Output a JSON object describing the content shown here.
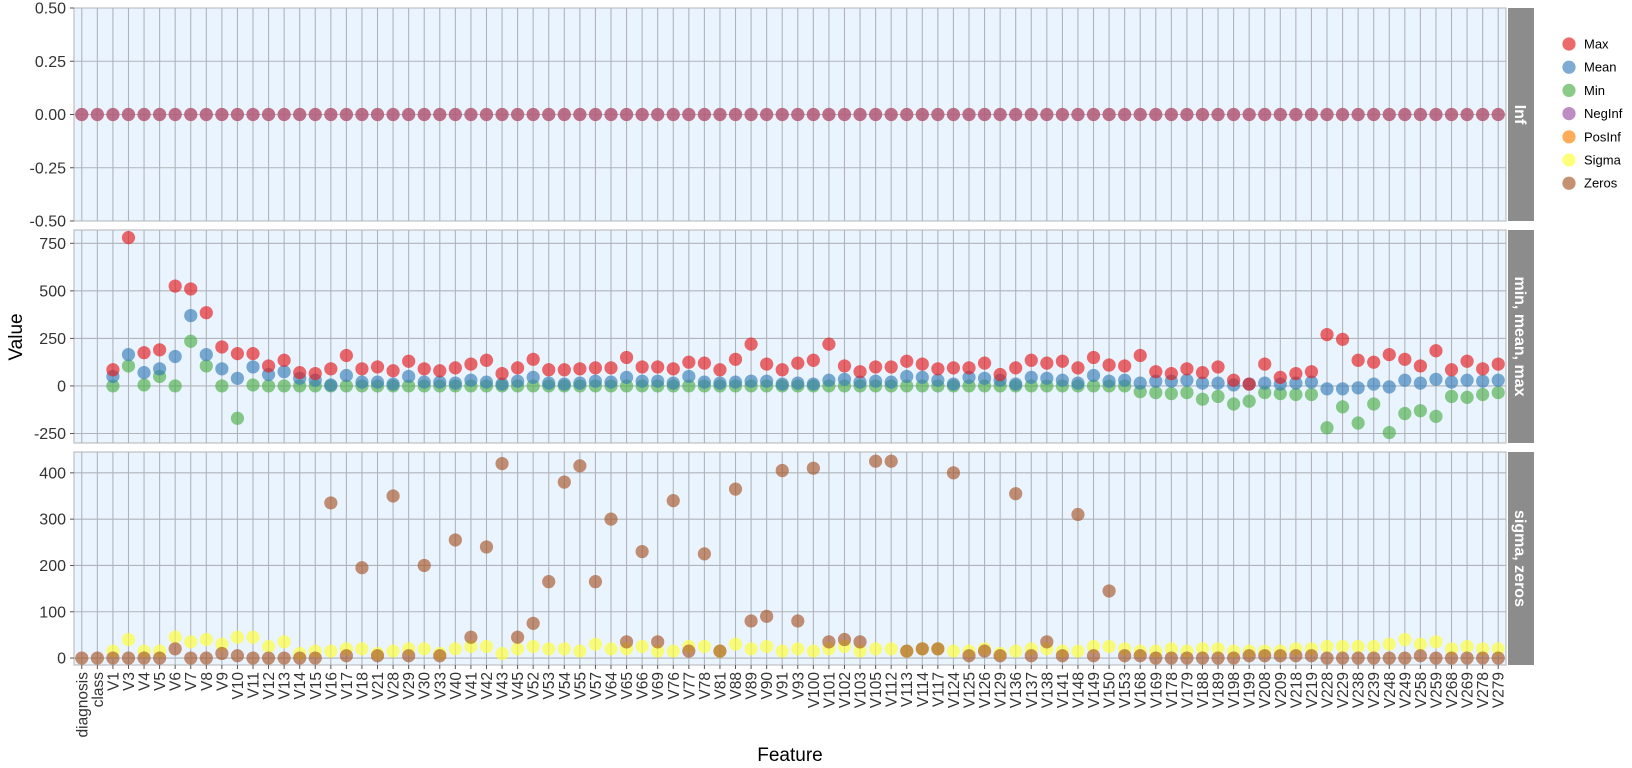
{
  "chart_data": {
    "type": "scatter",
    "xlabel": "Feature",
    "ylabel": "Value",
    "features": [
      "diagnosis",
      "class",
      "V1",
      "V3",
      "V4",
      "V5",
      "V6",
      "V7",
      "V8",
      "V9",
      "V10",
      "V11",
      "V12",
      "V13",
      "V14",
      "V15",
      "V16",
      "V17",
      "V18",
      "V21",
      "V28",
      "V29",
      "V30",
      "V33",
      "V40",
      "V41",
      "V42",
      "V43",
      "V45",
      "V52",
      "V53",
      "V54",
      "V55",
      "V57",
      "V64",
      "V65",
      "V66",
      "V69",
      "V76",
      "V77",
      "V78",
      "V81",
      "V88",
      "V89",
      "V90",
      "V91",
      "V93",
      "V100",
      "V101",
      "V102",
      "V103",
      "V105",
      "V112",
      "V113",
      "V114",
      "V117",
      "V124",
      "V125",
      "V126",
      "V129",
      "V136",
      "V137",
      "V138",
      "V141",
      "V148",
      "V149",
      "V150",
      "V153",
      "V168",
      "V169",
      "V178",
      "V179",
      "V188",
      "V189",
      "V198",
      "V199",
      "V208",
      "V209",
      "V218",
      "V219",
      "V228",
      "V229",
      "V238",
      "V239",
      "V248",
      "V249",
      "V258",
      "V259",
      "V268",
      "V269",
      "V278",
      "V279"
    ],
    "legend": {
      "position": "right",
      "entries": [
        {
          "name": "Max",
          "color": "#e41a1c"
        },
        {
          "name": "Mean",
          "color": "#377eb8"
        },
        {
          "name": "Min",
          "color": "#4daf4a"
        },
        {
          "name": "NegInf",
          "color": "#984ea3"
        },
        {
          "name": "PosInf",
          "color": "#ff7f00"
        },
        {
          "name": "Sigma",
          "color": "#ffff33"
        },
        {
          "name": "Zeros",
          "color": "#a65628"
        }
      ]
    },
    "panels": [
      {
        "strip": "Inf",
        "ylim": [
          -0.5,
          0.5
        ],
        "yticks": [
          0.5,
          0.25,
          0.0,
          -0.25,
          -0.5
        ],
        "ytick_labels": [
          "0.50",
          "0.25",
          "0.00",
          "-0.25",
          "-0.50"
        ],
        "series": [
          {
            "name": "PosInf",
            "values": [
              0,
              0,
              0,
              0,
              0,
              0,
              0,
              0,
              0,
              0,
              0,
              0,
              0,
              0,
              0,
              0,
              0,
              0,
              0,
              0,
              0,
              0,
              0,
              0,
              0,
              0,
              0,
              0,
              0,
              0,
              0,
              0,
              0,
              0,
              0,
              0,
              0,
              0,
              0,
              0,
              0,
              0,
              0,
              0,
              0,
              0,
              0,
              0,
              0,
              0,
              0,
              0,
              0,
              0,
              0,
              0,
              0,
              0,
              0,
              0,
              0,
              0,
              0,
              0,
              0,
              0,
              0,
              0,
              0,
              0,
              0,
              0,
              0,
              0,
              0,
              0,
              0,
              0,
              0,
              0,
              0,
              0,
              0,
              0,
              0,
              0,
              0,
              0,
              0,
              0,
              0,
              0
            ]
          },
          {
            "name": "NegInf",
            "values": [
              0,
              0,
              0,
              0,
              0,
              0,
              0,
              0,
              0,
              0,
              0,
              0,
              0,
              0,
              0,
              0,
              0,
              0,
              0,
              0,
              0,
              0,
              0,
              0,
              0,
              0,
              0,
              0,
              0,
              0,
              0,
              0,
              0,
              0,
              0,
              0,
              0,
              0,
              0,
              0,
              0,
              0,
              0,
              0,
              0,
              0,
              0,
              0,
              0,
              0,
              0,
              0,
              0,
              0,
              0,
              0,
              0,
              0,
              0,
              0,
              0,
              0,
              0,
              0,
              0,
              0,
              0,
              0,
              0,
              0,
              0,
              0,
              0,
              0,
              0,
              0,
              0,
              0,
              0,
              0,
              0,
              0,
              0,
              0,
              0,
              0,
              0,
              0,
              0,
              0,
              0,
              0
            ]
          }
        ]
      },
      {
        "strip": "min, mean, max",
        "ylim": [
          -300,
          820
        ],
        "yticks": [
          750,
          500,
          250,
          0,
          -250
        ],
        "ytick_labels": [
          "750",
          "500",
          "250",
          "0",
          "-250"
        ],
        "series": [
          {
            "name": "Min",
            "values": [
              null,
              null,
              0,
              105,
              5,
              50,
              0,
              235,
              105,
              0,
              -170,
              5,
              0,
              0,
              0,
              0,
              0,
              0,
              0,
              0,
              0,
              0,
              0,
              0,
              0,
              0,
              0,
              0,
              0,
              0,
              0,
              0,
              0,
              0,
              0,
              0,
              0,
              0,
              0,
              0,
              0,
              0,
              0,
              0,
              0,
              0,
              0,
              0,
              0,
              0,
              0,
              0,
              0,
              0,
              0,
              0,
              0,
              0,
              0,
              0,
              0,
              0,
              0,
              0,
              0,
              0,
              0,
              0,
              -30,
              -35,
              -40,
              -35,
              -70,
              -55,
              -95,
              -80,
              -35,
              -40,
              -45,
              -45,
              -220,
              -110,
              -195,
              -95,
              -245,
              -145,
              -130,
              -160,
              -55,
              -60,
              -45,
              -35
            ]
          },
          {
            "name": "Mean",
            "values": [
              null,
              null,
              50,
              165,
              70,
              90,
              155,
              370,
              165,
              90,
              40,
              100,
              60,
              75,
              40,
              30,
              5,
              55,
              20,
              20,
              10,
              50,
              20,
              20,
              15,
              30,
              20,
              10,
              25,
              45,
              15,
              10,
              15,
              25,
              20,
              45,
              25,
              25,
              15,
              50,
              20,
              15,
              20,
              25,
              25,
              10,
              15,
              10,
              30,
              35,
              20,
              25,
              20,
              50,
              45,
              30,
              10,
              45,
              40,
              30,
              10,
              45,
              40,
              30,
              15,
              55,
              25,
              30,
              15,
              25,
              25,
              30,
              15,
              15,
              5,
              10,
              15,
              10,
              15,
              20,
              -15,
              -15,
              -10,
              10,
              -5,
              30,
              15,
              35,
              20,
              30,
              25,
              30
            ]
          },
          {
            "name": "Max",
            "values": [
              null,
              null,
              85,
              780,
              175,
              190,
              525,
              510,
              385,
              205,
              170,
              170,
              105,
              135,
              70,
              65,
              90,
              160,
              90,
              100,
              80,
              130,
              90,
              80,
              95,
              115,
              135,
              65,
              95,
              140,
              85,
              85,
              90,
              95,
              95,
              150,
              100,
              100,
              90,
              125,
              120,
              85,
              140,
              220,
              115,
              85,
              120,
              135,
              220,
              105,
              75,
              100,
              100,
              130,
              115,
              90,
              95,
              95,
              120,
              60,
              95,
              135,
              120,
              130,
              95,
              150,
              110,
              105,
              160,
              75,
              65,
              90,
              70,
              100,
              30,
              10,
              115,
              45,
              65,
              75,
              270,
              245,
              135,
              125,
              165,
              140,
              105,
              185,
              85,
              130,
              90,
              115
            ]
          }
        ]
      },
      {
        "strip": "sigma, zeros",
        "ylim": [
          -15,
          445
        ],
        "yticks": [
          400,
          300,
          200,
          100,
          0
        ],
        "ytick_labels": [
          "400",
          "300",
          "200",
          "100",
          "0"
        ],
        "series": [
          {
            "name": "Sigma",
            "values": [
              null,
              null,
              15,
              40,
              15,
              15,
              45,
              35,
              40,
              30,
              45,
              45,
              25,
              35,
              10,
              15,
              15,
              20,
              20,
              10,
              15,
              20,
              20,
              10,
              20,
              25,
              25,
              10,
              20,
              25,
              20,
              20,
              15,
              30,
              20,
              20,
              25,
              15,
              15,
              25,
              25,
              15,
              30,
              20,
              25,
              15,
              20,
              15,
              20,
              25,
              15,
              20,
              20,
              15,
              20,
              20,
              15,
              15,
              20,
              10,
              15,
              20,
              20,
              15,
              15,
              25,
              25,
              20,
              15,
              15,
              20,
              15,
              20,
              20,
              15,
              15,
              15,
              15,
              20,
              20,
              25,
              25,
              25,
              25,
              30,
              40,
              30,
              35,
              20,
              25,
              20,
              20
            ]
          },
          {
            "name": "Zeros",
            "values": [
              0,
              0,
              0,
              0,
              0,
              0,
              20,
              0,
              0,
              10,
              5,
              0,
              0,
              0,
              0,
              0,
              335,
              5,
              195,
              5,
              350,
              5,
              200,
              5,
              255,
              45,
              240,
              420,
              45,
              75,
              165,
              380,
              415,
              165,
              300,
              35,
              230,
              35,
              340,
              15,
              225,
              15,
              365,
              80,
              90,
              405,
              80,
              410,
              35,
              40,
              35,
              425,
              425,
              15,
              20,
              20,
              400,
              5,
              15,
              5,
              355,
              5,
              35,
              5,
              310,
              5,
              145,
              5,
              5,
              0,
              0,
              0,
              0,
              0,
              0,
              5,
              5,
              5,
              5,
              5,
              0,
              0,
              0,
              0,
              0,
              0,
              5,
              0,
              0,
              0,
              0,
              0
            ]
          }
        ]
      }
    ]
  }
}
